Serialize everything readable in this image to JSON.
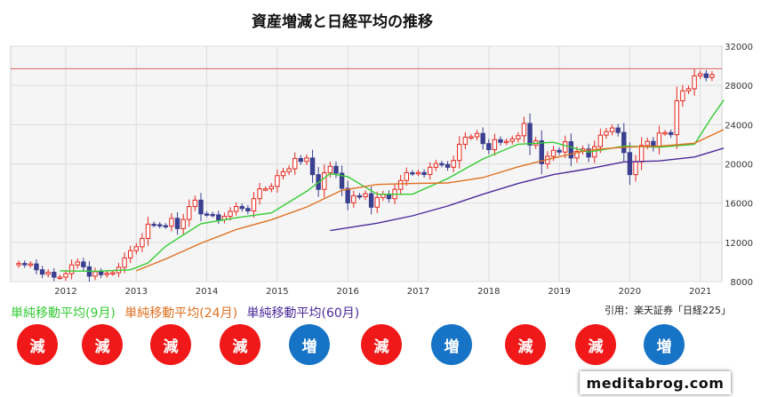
{
  "colors": {
    "up": "#e8251c",
    "down": "#3a3f8f",
    "ma9": "#33cc33",
    "ma24": "#e07020",
    "ma60": "#4a2a9a",
    "increase_badge": "#1673c6",
    "decrease_badge": "#f01818"
  },
  "legend": {
    "ma9": "単純移動平均(9月)",
    "ma24": "単純移動平均(24月)",
    "ma60": "単純移動平均(60月)"
  },
  "source": "引用：楽天証券「日経225」",
  "site": "meditabrog.com",
  "badges": [
    {
      "label": "減",
      "kind": "decrease"
    },
    {
      "label": "減",
      "kind": "decrease"
    },
    {
      "label": "減",
      "kind": "decrease"
    },
    {
      "label": "減",
      "kind": "decrease"
    },
    {
      "label": "増",
      "kind": "increase"
    },
    {
      "label": "減",
      "kind": "decrease"
    },
    {
      "label": "増",
      "kind": "increase"
    },
    {
      "label": "減",
      "kind": "decrease"
    },
    {
      "label": "減",
      "kind": "decrease"
    },
    {
      "label": "増",
      "kind": "increase"
    }
  ],
  "chart_data": {
    "type": "candlestick",
    "title": "資産増減と日経平均の推移",
    "xlabel": "",
    "ylabel": "",
    "x_ticks": [
      "2012",
      "2013",
      "2014",
      "2015",
      "2016",
      "2017",
      "2018",
      "2019",
      "2020",
      "2021"
    ],
    "y_ticks": [
      8000,
      12000,
      16000,
      20000,
      24000,
      28000,
      32000
    ],
    "ylim": [
      8000,
      32000
    ],
    "grid": true,
    "reference_line": 29700,
    "start_month": "2011-05",
    "candles": [
      [
        9700,
        9850
      ],
      [
        9850,
        9700
      ],
      [
        9700,
        9800
      ],
      [
        9800,
        9200
      ],
      [
        9200,
        8750
      ],
      [
        8750,
        8950
      ],
      [
        8950,
        8450
      ],
      [
        8450,
        8450
      ],
      [
        8450,
        8800
      ],
      [
        8800,
        9700
      ],
      [
        9700,
        10000
      ],
      [
        10000,
        9500
      ],
      [
        9500,
        8550
      ],
      [
        8550,
        9000
      ],
      [
        9000,
        8700
      ],
      [
        8700,
        8850
      ],
      [
        8850,
        8900
      ],
      [
        8900,
        9450
      ],
      [
        9450,
        10400
      ],
      [
        10400,
        11150
      ],
      [
        11150,
        11550
      ],
      [
        11550,
        12400
      ],
      [
        12400,
        13850
      ],
      [
        13850,
        13800
      ],
      [
        13800,
        13700
      ],
      [
        13700,
        13650
      ],
      [
        13650,
        14450
      ],
      [
        14450,
        13400
      ],
      [
        13400,
        14330
      ],
      [
        14330,
        15650
      ],
      [
        15650,
        16300
      ],
      [
        16300,
        14900
      ],
      [
        14900,
        14850
      ],
      [
        14850,
        14800
      ],
      [
        14800,
        14300
      ],
      [
        14300,
        14650
      ],
      [
        14650,
        15150
      ],
      [
        15150,
        15650
      ],
      [
        15650,
        15450
      ],
      [
        15450,
        15200
      ],
      [
        15200,
        16450
      ],
      [
        16450,
        17450
      ],
      [
        17450,
        17450
      ],
      [
        17450,
        17700
      ],
      [
        17700,
        18800
      ],
      [
        18800,
        19200
      ],
      [
        19200,
        19500
      ],
      [
        19500,
        20550
      ],
      [
        20550,
        20250
      ],
      [
        20250,
        20600
      ],
      [
        20600,
        18900
      ],
      [
        18900,
        17400
      ],
      [
        17400,
        19100
      ],
      [
        19100,
        19750
      ],
      [
        19750,
        19050
      ],
      [
        19050,
        17500
      ],
      [
        17500,
        16030
      ],
      [
        16030,
        16750
      ],
      [
        16750,
        16650
      ],
      [
        16650,
        16950
      ],
      [
        16950,
        15580
      ],
      [
        15580,
        16570
      ],
      [
        16570,
        16890
      ],
      [
        16890,
        16450
      ],
      [
        16450,
        17400
      ],
      [
        17400,
        18300
      ],
      [
        18300,
        19100
      ],
      [
        19100,
        19040
      ],
      [
        19040,
        19120
      ],
      [
        19120,
        18910
      ],
      [
        18910,
        19650
      ],
      [
        19650,
        20030
      ],
      [
        20030,
        19930
      ],
      [
        19930,
        19650
      ],
      [
        19650,
        20350
      ],
      [
        20350,
        22000
      ],
      [
        22000,
        22720
      ],
      [
        22720,
        22760
      ],
      [
        22760,
        23100
      ],
      [
        23100,
        22070
      ],
      [
        22070,
        21450
      ],
      [
        21450,
        22470
      ],
      [
        22470,
        22200
      ],
      [
        22200,
        22300
      ],
      [
        22300,
        22550
      ],
      [
        22550,
        22870
      ],
      [
        22870,
        24120
      ],
      [
        24120,
        21920
      ],
      [
        21920,
        22350
      ],
      [
        22350,
        20010
      ],
      [
        20010,
        20770
      ],
      [
        20770,
        21380
      ],
      [
        21380,
        21200
      ],
      [
        21200,
        22260
      ],
      [
        22260,
        20600
      ],
      [
        20600,
        21280
      ],
      [
        21280,
        21520
      ],
      [
        21520,
        20700
      ],
      [
        20700,
        21760
      ],
      [
        21760,
        22930
      ],
      [
        22930,
        23290
      ],
      [
        23290,
        23660
      ],
      [
        23660,
        23200
      ],
      [
        23200,
        21150
      ],
      [
        21150,
        18900
      ],
      [
        18900,
        20200
      ],
      [
        20200,
        21880
      ],
      [
        21880,
        22290
      ],
      [
        22290,
        21710
      ],
      [
        21710,
        23140
      ],
      [
        23140,
        23190
      ],
      [
        23190,
        22980
      ],
      [
        22980,
        26430
      ],
      [
        26430,
        27440
      ],
      [
        27440,
        27660
      ],
      [
        27660,
        28970
      ],
      [
        28970,
        29180
      ],
      [
        29180,
        28800
      ],
      [
        28800,
        29100
      ]
    ],
    "series": [
      {
        "name": "単純移動平均(9月)",
        "points": [
          [
            "2011-12",
            9100
          ],
          [
            "2012-06",
            9050
          ],
          [
            "2012-12",
            9200
          ],
          [
            "2013-03",
            9900
          ],
          [
            "2013-06",
            11600
          ],
          [
            "2013-12",
            13900
          ],
          [
            "2014-06",
            14500
          ],
          [
            "2014-12",
            15000
          ],
          [
            "2015-06",
            17200
          ],
          [
            "2015-10",
            19000
          ],
          [
            "2016-01",
            18700
          ],
          [
            "2016-06",
            16900
          ],
          [
            "2016-12",
            16900
          ],
          [
            "2017-06",
            18500
          ],
          [
            "2017-12",
            20500
          ],
          [
            "2018-06",
            22000
          ],
          [
            "2018-12",
            22200
          ],
          [
            "2019-06",
            21200
          ],
          [
            "2019-12",
            21800
          ],
          [
            "2020-06",
            21700
          ],
          [
            "2020-12",
            22000
          ],
          [
            "2021-03",
            24800
          ],
          [
            "2021-05",
            26500
          ]
        ]
      },
      {
        "name": "単純移動平均(24月)",
        "points": [
          [
            "2013-01",
            9100
          ],
          [
            "2013-06",
            10300
          ],
          [
            "2013-12",
            11900
          ],
          [
            "2014-06",
            13300
          ],
          [
            "2014-12",
            14300
          ],
          [
            "2015-06",
            15600
          ],
          [
            "2015-12",
            17300
          ],
          [
            "2016-06",
            17900
          ],
          [
            "2016-12",
            18000
          ],
          [
            "2017-06",
            18050
          ],
          [
            "2017-12",
            18600
          ],
          [
            "2018-06",
            19700
          ],
          [
            "2018-12",
            20600
          ],
          [
            "2019-06",
            21400
          ],
          [
            "2019-12",
            21700
          ],
          [
            "2020-06",
            21800
          ],
          [
            "2020-12",
            22100
          ],
          [
            "2021-05",
            23500
          ]
        ]
      },
      {
        "name": "単純移動平均(60月)",
        "points": [
          [
            "2015-10",
            13200
          ],
          [
            "2016-06",
            13950
          ],
          [
            "2016-12",
            14700
          ],
          [
            "2017-06",
            15700
          ],
          [
            "2017-12",
            16900
          ],
          [
            "2018-06",
            18000
          ],
          [
            "2018-12",
            18900
          ],
          [
            "2019-06",
            19500
          ],
          [
            "2019-12",
            20200
          ],
          [
            "2020-06",
            20300
          ],
          [
            "2020-12",
            20700
          ],
          [
            "2021-05",
            21600
          ]
        ]
      }
    ]
  }
}
